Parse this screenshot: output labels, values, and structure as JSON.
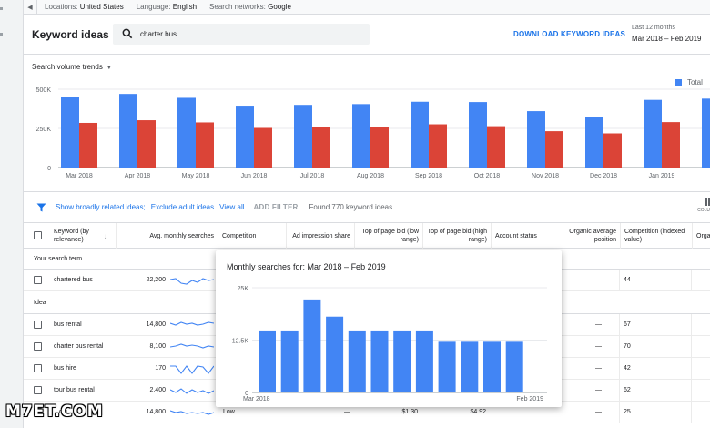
{
  "topbar": {
    "locations_label": "Locations:",
    "locations_value": "United States",
    "language_label": "Language:",
    "language_value": "English",
    "networks_label": "Search networks:",
    "networks_value": "Google"
  },
  "header": {
    "title": "Keyword ideas",
    "search_value": "charter bus",
    "download_label": "DOWNLOAD KEYWORD IDEAS",
    "period_label": "Last 12 months",
    "period_value": "Mar 2018 – Feb 2019"
  },
  "trend": {
    "dropdown_label": "Search volume trends",
    "legend_total": "Total"
  },
  "chart_data": [
    {
      "type": "bar",
      "categories": [
        "Mar 2018",
        "Apr 2018",
        "May 2018",
        "Jun 2018",
        "Jul 2018",
        "Aug 2018",
        "Sep 2018",
        "Oct 2018",
        "Nov 2018",
        "Dec 2018",
        "Jan 2019",
        "F"
      ],
      "series": [
        {
          "name": "Total",
          "color": "#4285f4",
          "values": [
            450000,
            470000,
            445000,
            395000,
            400000,
            405000,
            420000,
            418000,
            360000,
            322000,
            432000,
            440000
          ]
        },
        {
          "color": "#db4437",
          "values": [
            285000,
            302000,
            288000,
            253000,
            258000,
            258000,
            276000,
            264000,
            232000,
            218000,
            290000,
            296000
          ]
        }
      ],
      "yticks": [
        "0",
        "250K",
        "500K"
      ],
      "ylim": [
        0,
        500000
      ],
      "grid": true,
      "legend": "top-right"
    },
    {
      "type": "bar",
      "title": "Monthly searches for: Mar 2018 – Feb 2019",
      "categories": [
        "Mar 2018",
        "Apr 2018",
        "May 2018",
        "Jun 2018",
        "Jul 2018",
        "Aug 2018",
        "Sep 2018",
        "Oct 2018",
        "Nov 2018",
        "Dec 2018",
        "Jan 2019",
        "Feb 2019"
      ],
      "values": [
        14800,
        14800,
        22200,
        18100,
        14800,
        14800,
        14800,
        14800,
        12100,
        12100,
        12100,
        12100
      ],
      "yticks": [
        "0",
        "12.5K",
        "25K"
      ],
      "ylim": [
        0,
        25000
      ],
      "xtick_labels": [
        "Mar 2018",
        "Feb 2019"
      ],
      "color": "#4285f4",
      "grid": true
    }
  ],
  "filters": {
    "broad_ideas": "Show broadly related ideas;",
    "exclude_adult": "Exclude adult ideas",
    "view_all": "View all",
    "add_filter": "ADD FILTER",
    "found": "Found 770 keyword ideas",
    "columns": "COLU"
  },
  "columns": {
    "keyword": "Keyword (by relevance)",
    "avg_searches": "Avg. monthly searches",
    "competition": "Competition",
    "ad_impression": "Ad impression share",
    "low_bid": "Top of page bid (low range)",
    "high_bid": "Top of page bid (high range)",
    "account_status": "Account status",
    "organic_position": "Organic average position",
    "competition_indexed": "Competition (indexed value)",
    "org": "Orga"
  },
  "sections": {
    "search_term": "Your search term",
    "idea": "Idea"
  },
  "search_term_row": {
    "keyword": "chartered bus",
    "volume": "22,200",
    "organic": "—",
    "indexed": "44"
  },
  "idea_rows": [
    {
      "keyword": "bus rental",
      "volume": "14,800",
      "organic": "—",
      "indexed": "67"
    },
    {
      "keyword": "charter bus rental",
      "volume": "8,100",
      "organic": "—",
      "indexed": "70"
    },
    {
      "keyword": "bus hire",
      "volume": "170",
      "organic": "—",
      "indexed": "42"
    },
    {
      "keyword": "tour bus rental",
      "volume": "2,400",
      "organic": "—",
      "indexed": "62"
    },
    {
      "keyword": "...chi...",
      "volume": "14,800",
      "competition": "Low",
      "impression": "—",
      "low": "$1.30",
      "high": "$4.92",
      "organic": "—",
      "indexed": "25"
    }
  ],
  "watermark": "M7ET.COM"
}
